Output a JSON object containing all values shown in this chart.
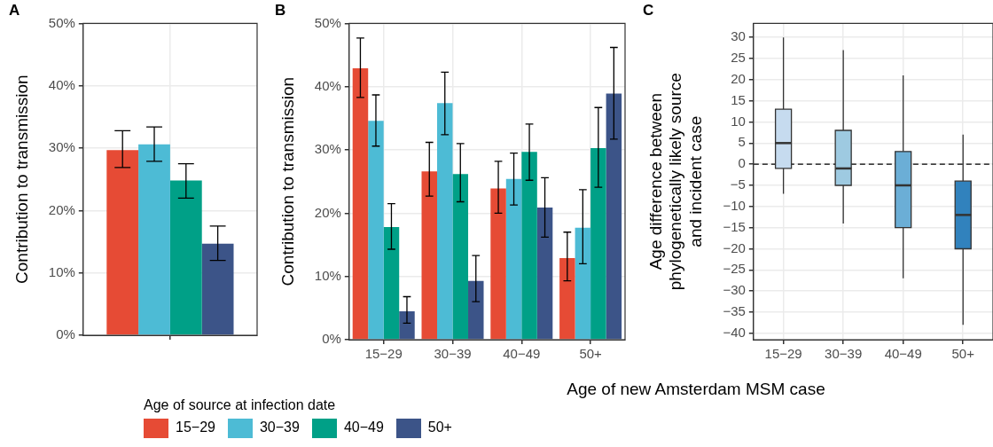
{
  "chart_data": [
    {
      "type": "bar",
      "title": "A",
      "ylabel": "Contribution to transmission",
      "legend_title": "Age of source at infection date",
      "legend": "bottom",
      "grid": true,
      "tick_labels": "y",
      "categories": [
        null
      ],
      "ylim": [
        0,
        50
      ],
      "yticks": [
        {
          "value": 0,
          "label": "0%"
        },
        {
          "value": 10,
          "label": "10%"
        },
        {
          "value": 20,
          "label": "20%"
        },
        {
          "value": 30,
          "label": "30%"
        },
        {
          "value": 40,
          "label": "40%"
        },
        {
          "value": 50,
          "label": "50%"
        }
      ],
      "series": [
        {
          "name": "15−29",
          "color": "#e64b35",
          "values": [
            29.7
          ],
          "errors": [
            [
              26.9,
              32.8
            ]
          ]
        },
        {
          "name": "30−39",
          "color": "#4dbbd5",
          "values": [
            30.6
          ],
          "errors": [
            [
              27.9,
              33.4
            ]
          ]
        },
        {
          "name": "40−49",
          "color": "#00a087",
          "values": [
            24.8
          ],
          "errors": [
            [
              22.0,
              27.5
            ]
          ]
        },
        {
          "name": "50+",
          "color": "#3c5488",
          "values": [
            14.7
          ],
          "errors": [
            [
              12.0,
              17.5
            ]
          ]
        }
      ]
    },
    {
      "type": "bar",
      "title": "B",
      "ylabel": "Contribution to transmission",
      "xlabel": "Age of new Amsterdam MSM case",
      "grid": true,
      "categories": [
        "15−29",
        "30−39",
        "40−49",
        "50+"
      ],
      "ylim": [
        0,
        50
      ],
      "yticks": [
        {
          "value": 0,
          "label": "0%"
        },
        {
          "value": 10,
          "label": "10%"
        },
        {
          "value": 20,
          "label": "20%"
        },
        {
          "value": 30,
          "label": "30%"
        },
        {
          "value": 40,
          "label": "40%"
        },
        {
          "value": 50,
          "label": "50%"
        }
      ],
      "series": [
        {
          "color": "#e64b35",
          "values": [
            42.9,
            26.6,
            23.9,
            12.9
          ],
          "errors": [
            [
              38.3,
              47.7
            ],
            [
              22.7,
              31.2
            ],
            [
              20.0,
              28.2
            ],
            [
              9.3,
              17.0
            ]
          ]
        },
        {
          "color": "#4dbbd5",
          "values": [
            34.6,
            37.4,
            25.4,
            17.7
          ],
          "errors": [
            [
              30.6,
              38.7
            ],
            [
              32.4,
              42.3
            ],
            [
              21.3,
              29.5
            ],
            [
              12.0,
              23.7
            ]
          ]
        },
        {
          "color": "#00a087",
          "values": [
            17.8,
            26.2,
            29.7,
            30.3
          ],
          "errors": [
            [
              14.3,
              21.5
            ],
            [
              21.8,
              31.0
            ],
            [
              25.2,
              34.1
            ],
            [
              24.1,
              36.7
            ]
          ]
        },
        {
          "color": "#3c5488",
          "values": [
            4.5,
            9.3,
            20.9,
            38.9
          ],
          "errors": [
            [
              2.6,
              6.8
            ],
            [
              6.0,
              13.3
            ],
            [
              16.2,
              25.6
            ],
            [
              31.7,
              46.2
            ]
          ]
        }
      ]
    },
    {
      "type": "box",
      "title": "C",
      "ylabel": "Age difference between\nphylogenetically likely source\nand incident case",
      "grid": true,
      "categories": [
        "15−29",
        "30−39",
        "40−49",
        "50+"
      ],
      "ylim": [
        -41.5,
        33.3
      ],
      "yticks": [
        -40,
        -35,
        -30,
        -25,
        -20,
        -15,
        -10,
        -5,
        0,
        5,
        10,
        15,
        20,
        25,
        30
      ],
      "colors": [
        "#c6dbef",
        "#9ecae1",
        "#6baed6",
        "#3182bd"
      ],
      "boxes": [
        {
          "low": -7,
          "q1": -1,
          "median": 5,
          "q3": 13,
          "high": 30
        },
        {
          "low": -14,
          "q1": -5,
          "median": -1,
          "q3": 8,
          "high": 27
        },
        {
          "low": -27,
          "q1": -15,
          "median": -5,
          "q3": 3,
          "high": 21
        },
        {
          "low": -38,
          "q1": -20,
          "median": -12,
          "q3": -4,
          "high": 7
        }
      ],
      "ref_lines": [
        {
          "axis": "y",
          "value": 0,
          "line_style": "dashed"
        }
      ]
    }
  ]
}
